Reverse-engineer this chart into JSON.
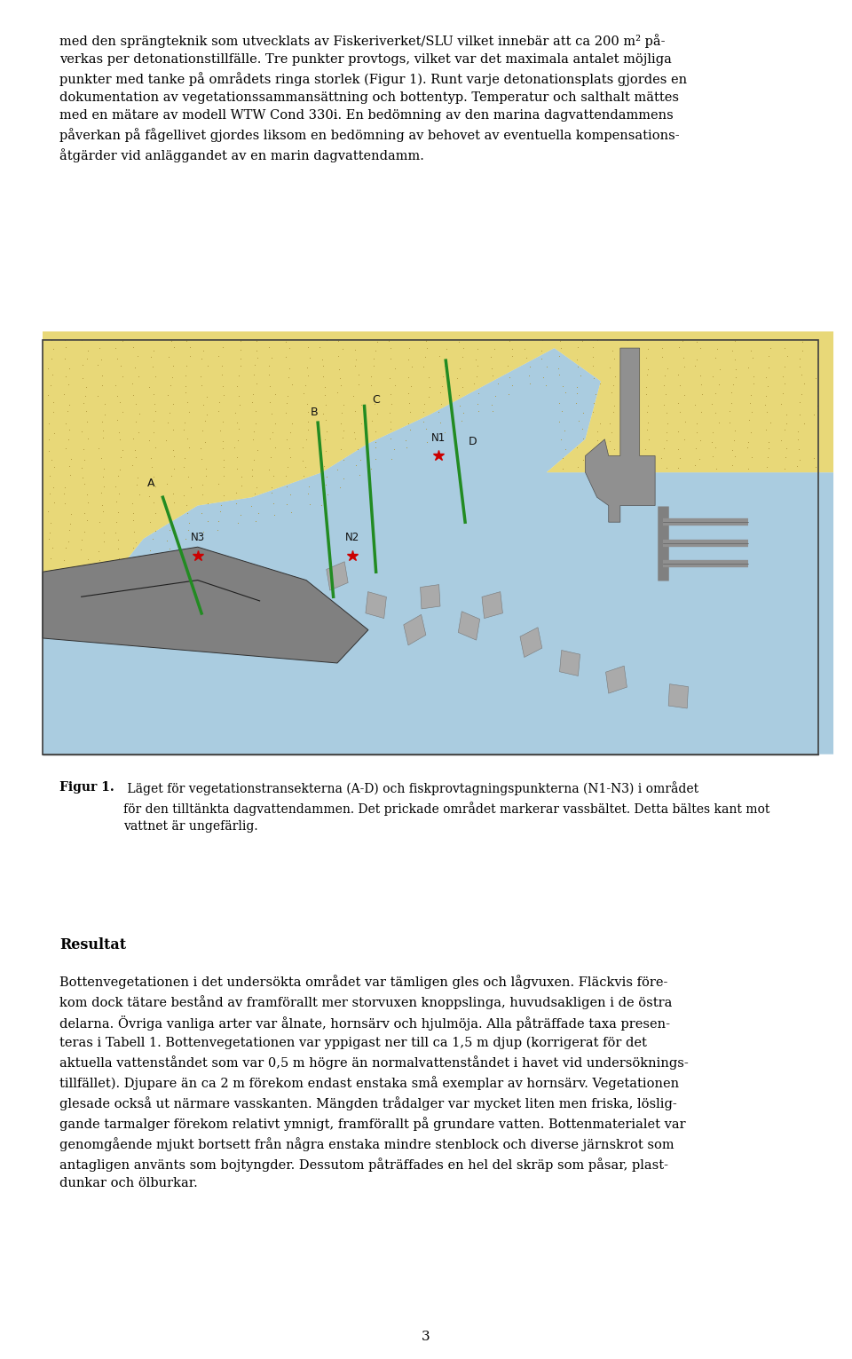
{
  "page_width": 9.6,
  "page_height": 15.31,
  "bg_color": "#ffffff",
  "top_text": "med den sprängteknik som utvecklats av Fiskeriverket/SLU vilket innebär att ca 200 m² på-\nverkas per detonationstillfälle. Tre punkter provtogs, vilket var det maximala antalet möjliga\npunkter med tanke på områdets ringa storlek (Figur 1). Runt varje detonationsplats gjordes en\ndokumentation av vegetationssammansättning och bottentyp. Temperatur och salthalt mättes\nmed en mätare av modell WTW Cond 330i. En bedömning av den marina dagvattendammens\npåverkan på fågellivet gjordes liksom en bedömning av behovet av eventuella kompensations-\nåtgärder vid anläggandet av en marin dagvattendamm.",
  "fig_caption_bold": "Figur 1.",
  "fig_caption_rest": " Läget för vegetationstransekterna (A-D) och fiskprovtagningspunkterna (N1-N3) i området\nför den tilltänkta dagvattendammen. Det prickade området markerar vassbältet. Detta bältes kant mot\nvattnet är ungefärlig.",
  "result_heading": "Resultat",
  "result_text": "Bottenvegetationen i det undersökta området var tämligen gles och lågvuxen. Fläckvis före-\nkom dock tätare bestånd av framförallt mer storvuxen knoppslinga, huvudsakligen i de östra\ndelarna. Övriga vanliga arter var ålnate, hornsärv och hjulmöja. Alla påträffade taxa presen-\nteras i Tabell 1. Bottenvegetationen var yppigast ner till ca 1,5 m djup (korrigerat för det\naktuella vattenståndet som var 0,5 m högre än normalvattenståndet i havet vid undersöknings-\ntillfället). Djupare än ca 2 m förekom endast enstaka små exemplar av hornsärv. Vegetationen\nglesade också ut närmare vasskanten. Mängden trådalger var mycket liten men friska, löslig-\ngande tarmalger förekom relativt ymnigt, framförallt på grundare vatten. Bottenmaterialet var\ngenomgående mjukt bortsett från några enstaka mindre stenblock och diverse järnskrot som\nantagligen använts som bojtyngder. Dessutom påträffades en hel del skräp som påsar, plast-\ndunkar och ölburkar.",
  "page_number": "3",
  "map_bg_outer": "#eeeedd",
  "map_bg_water": "#aacce0",
  "map_land_color": "#e8d878",
  "map_land_dot_color": "#b0963a",
  "map_gray": "#909090",
  "map_dark_gray": "#606060",
  "map_green_line": "#228B22",
  "map_red_star": "#cc0000",
  "map_border": "#404040"
}
